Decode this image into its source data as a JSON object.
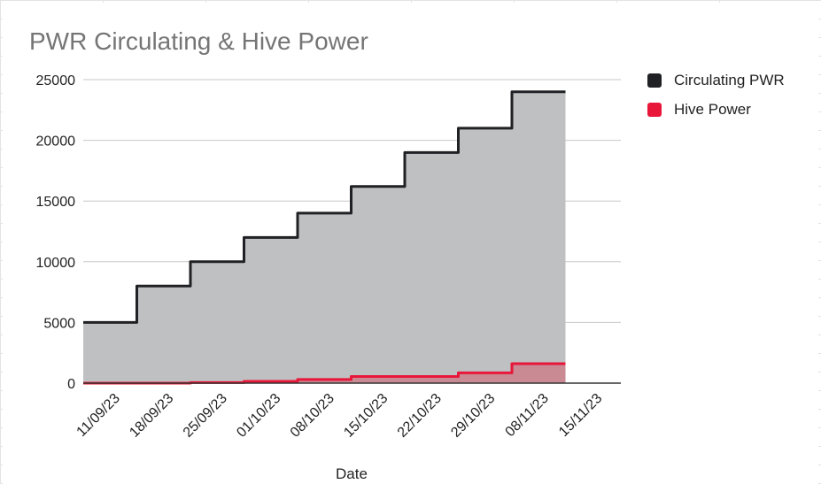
{
  "chart_data": {
    "type": "area",
    "title": "PWR Circulating & Hive Power",
    "xlabel": "Date",
    "ylabel": "",
    "x_ticks": [
      "11/09/23",
      "18/09/23",
      "25/09/23",
      "01/10/23",
      "08/10/23",
      "15/10/23",
      "22/10/23",
      "29/10/23",
      "08/11/23",
      "15/11/23"
    ],
    "y_ticks": [
      0,
      5000,
      10000,
      15000,
      20000,
      25000
    ],
    "ylim": [
      0,
      25000
    ],
    "grid": true,
    "legend": "right",
    "series": [
      {
        "name": "Circulating PWR",
        "color": "#202124",
        "fill": "#bfc0c2",
        "values": [
          5000,
          8000,
          10000,
          12000,
          14000,
          16200,
          19000,
          21000,
          24000
        ]
      },
      {
        "name": "Hive Power",
        "color": "#e8173a",
        "fill": "#c98a93",
        "values": [
          0,
          0,
          50,
          150,
          300,
          550,
          550,
          850,
          1600
        ]
      }
    ]
  }
}
